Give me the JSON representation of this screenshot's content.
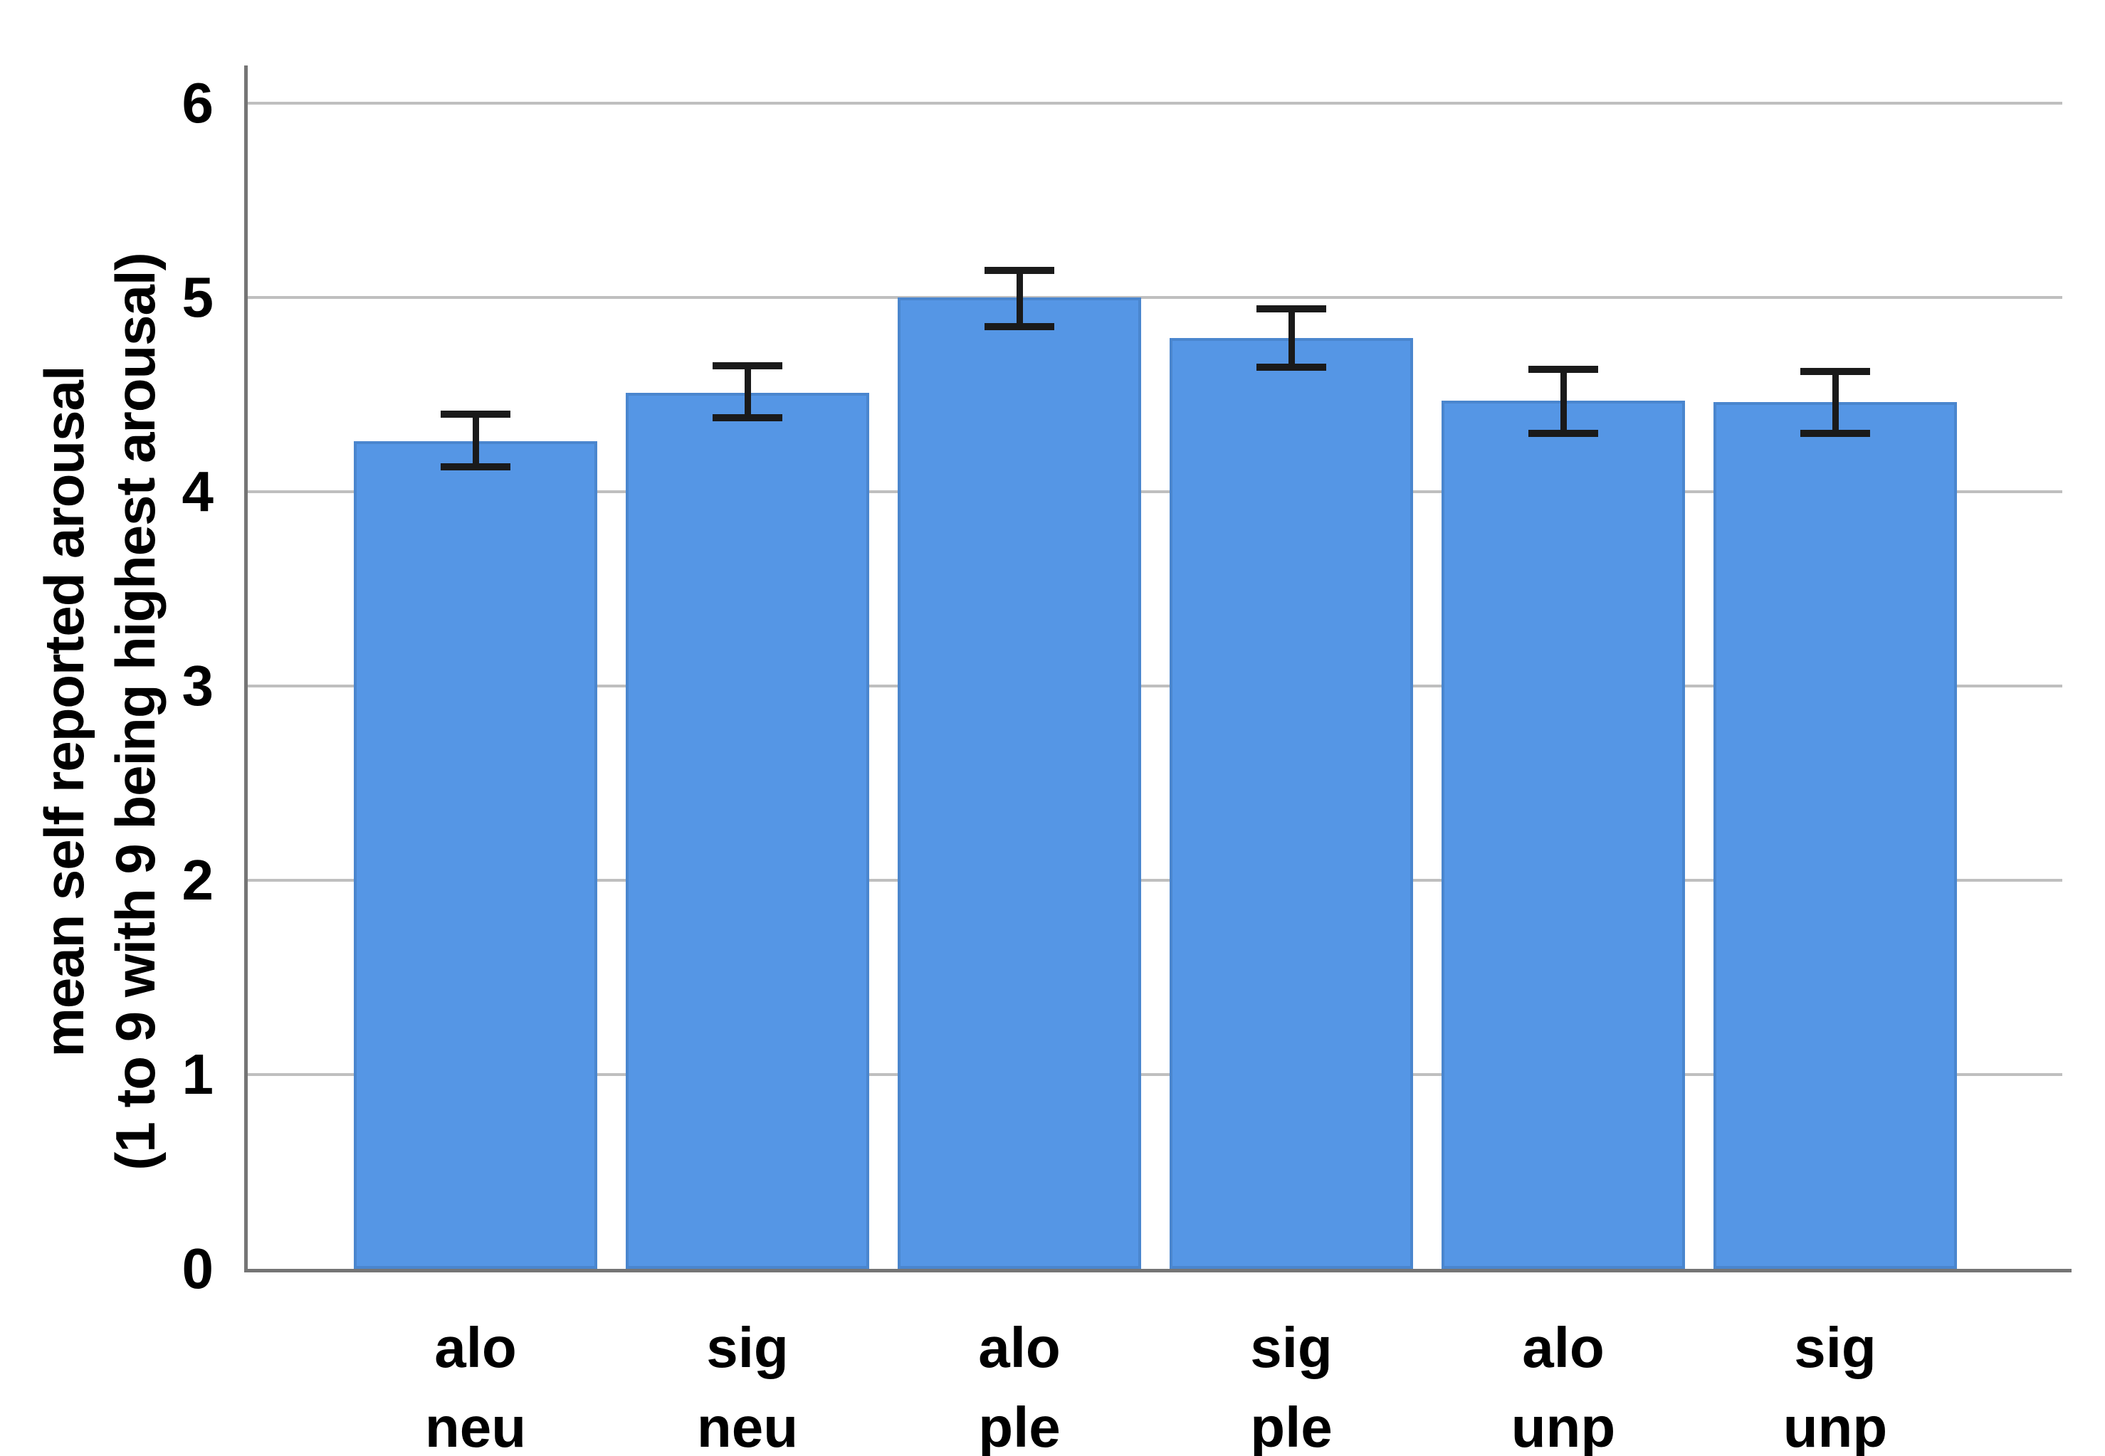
{
  "chart_data": {
    "type": "bar",
    "title": "",
    "categories": [
      "alo neu",
      "sig neu",
      "alo ple",
      "sig ple",
      "alo unp",
      "sig unp"
    ],
    "category_lines": [
      [
        "alo",
        "neu"
      ],
      [
        "sig",
        "neu"
      ],
      [
        "alo",
        "ple"
      ],
      [
        "sig",
        "ple"
      ],
      [
        "alo",
        "unp"
      ],
      [
        "sig",
        "unp"
      ]
    ],
    "series": [
      {
        "name": "mean self reported arousal",
        "values": [
          4.26,
          4.51,
          5.0,
          4.79,
          4.47,
          4.46
        ],
        "error_low": [
          4.13,
          4.38,
          4.85,
          4.64,
          4.3,
          4.3
        ],
        "error_high": [
          4.4,
          4.65,
          5.14,
          4.94,
          4.63,
          4.62
        ]
      }
    ],
    "xlabel": "",
    "ylabel_line1": "mean self reported arousal",
    "ylabel_line2": "(1 to 9 with 9 being highest arousal)",
    "y_ticks": [
      0,
      1,
      2,
      3,
      4,
      5,
      6
    ],
    "ylim": [
      0,
      6.2
    ],
    "grid": true,
    "legend": "none",
    "colors": {
      "bar_fill": "#5596e5",
      "bar_border": "#4a86ce",
      "error_bar": "#1a1a1a",
      "axis_line": "#757575",
      "gridline": "#bfbfbf",
      "text": "#000000",
      "background": "#ffffff"
    }
  }
}
